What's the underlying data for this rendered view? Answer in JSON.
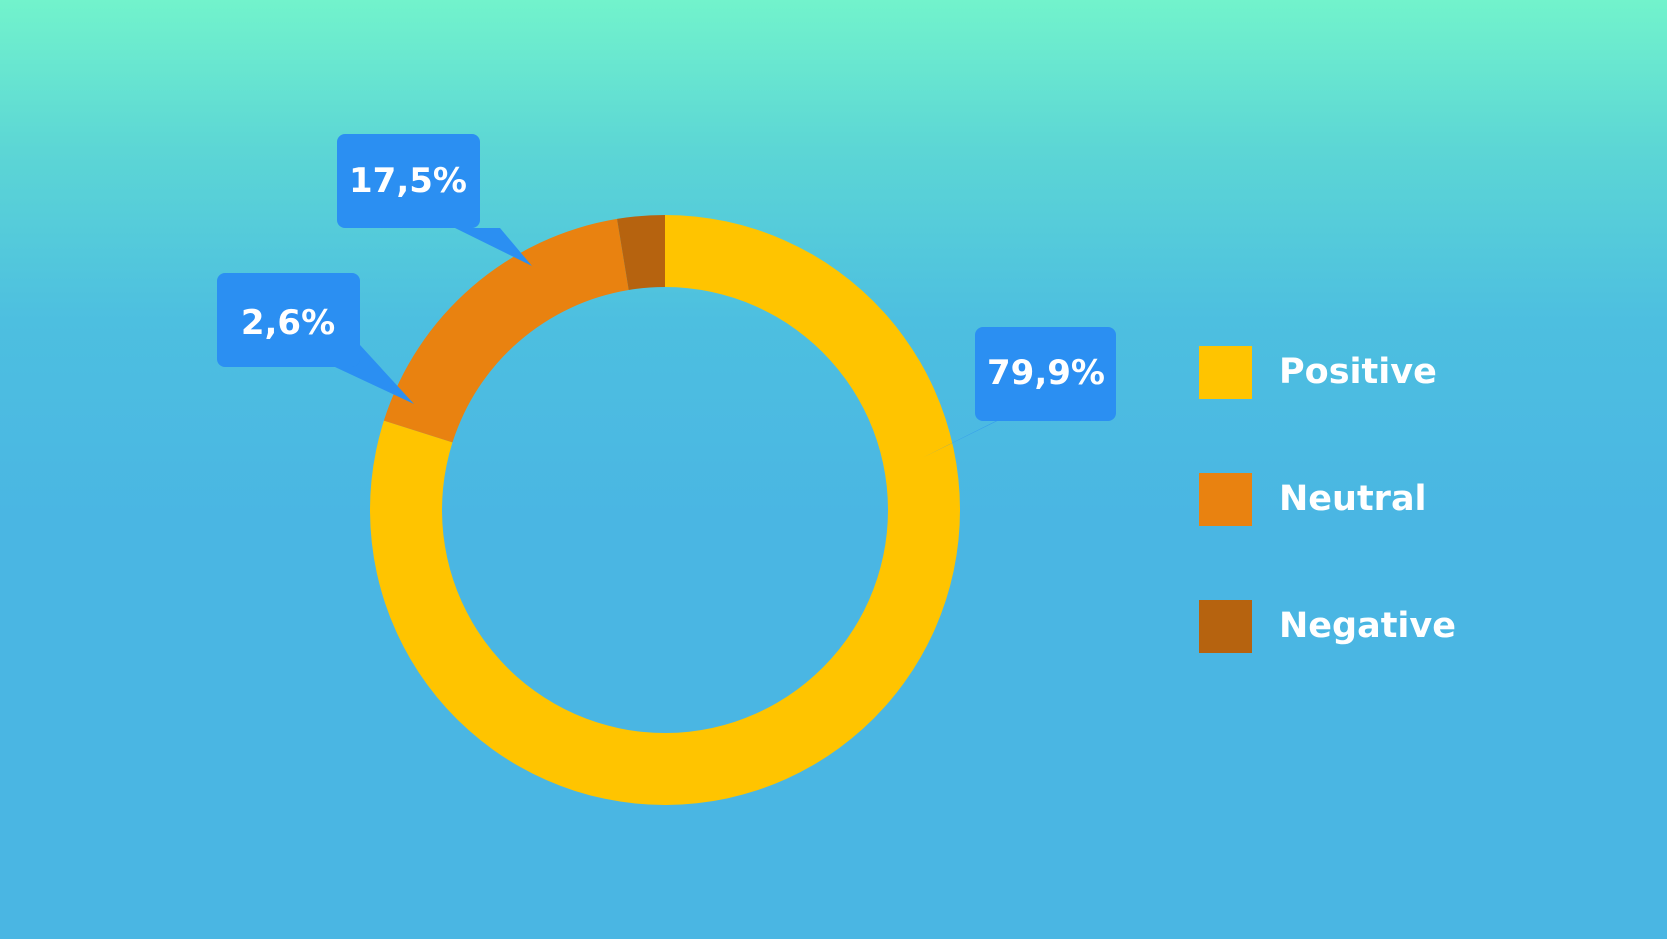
{
  "chart_data": {
    "type": "pie",
    "variant": "donut",
    "legend_position": "right",
    "categories": [
      "Positive",
      "Neutral",
      "Negative"
    ],
    "values": [
      79.9,
      17.5,
      2.6
    ],
    "data_labels": [
      "79,9%",
      "17,5%",
      "2,6%"
    ],
    "colors": [
      "#ffc400",
      "#e98210",
      "#b6630f"
    ],
    "label_color": "#2b8ff2",
    "background_colors": [
      "#72f3cc",
      "#4ab6e3"
    ]
  }
}
